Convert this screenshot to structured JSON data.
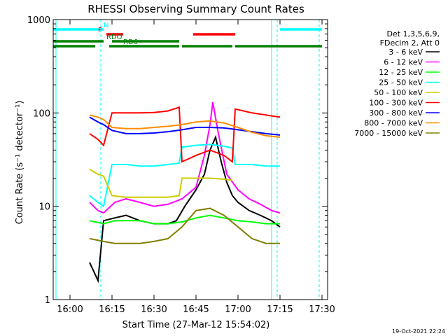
{
  "chart_data": {
    "type": "line",
    "title": "RHESSI Observing Summary Count Rates",
    "xlabel": "Start Time (27-Mar-12 15:54:02)",
    "ylabel": "Count Rate (s⁻¹ detector⁻¹)",
    "y_scale": "log",
    "ylim": [
      1,
      1000
    ],
    "xlim": [
      "15:54",
      "17:32"
    ],
    "x_ticks": [
      "16:00",
      "16:15",
      "16:30",
      "16:45",
      "17:00",
      "17:15",
      "17:30"
    ],
    "y_ticks": [
      "1",
      "10",
      "100",
      "1000"
    ],
    "legend": {
      "placement": "right",
      "header": [
        "Det 1,3,5,6,9,",
        "FDecim 2, Att 0"
      ]
    },
    "timestamp": "19-Oct-2021 22:24",
    "flags": [
      {
        "label": "N",
        "color": "#00ffff",
        "segments": [
          [
            "15:54",
            "16:12"
          ],
          [
            "17:15",
            "17:30"
          ]
        ]
      },
      {
        "label": "F",
        "color": "#ff0000",
        "segments": [
          [
            "16:13",
            "16:19"
          ],
          [
            "16:44",
            "16:59"
          ]
        ]
      },
      {
        "label": "RDO",
        "color": "#008000",
        "segments": [
          [
            "15:54",
            "16:12"
          ],
          [
            "16:15",
            "16:39"
          ]
        ]
      },
      {
        "label": "RD6",
        "color": "#008000",
        "segments": [
          [
            "15:54",
            "16:09"
          ],
          [
            "16:14",
            "16:39"
          ],
          [
            "16:40",
            "16:58"
          ],
          [
            "16:59",
            "17:30"
          ]
        ]
      }
    ],
    "vlines": [
      {
        "time": "16:11",
        "style": "dashed",
        "color": "#00ffff"
      },
      {
        "time": "17:14",
        "style": "dashed",
        "color": "#00ffff"
      },
      {
        "time": "17:29",
        "style": "dashed",
        "color": "#00ffff"
      },
      {
        "time": "15:55",
        "style": "solid",
        "color": "#00ffff"
      },
      {
        "time": "17:12",
        "style": "solid",
        "color": "#00ffff"
      }
    ],
    "series": [
      {
        "name": "3 - 6 keV",
        "color": "#000000",
        "points": [
          [
            "16:07",
            2.5
          ],
          [
            "16:10",
            1.6
          ],
          [
            "16:12",
            7
          ],
          [
            "16:16",
            7.5
          ],
          [
            "16:20",
            8
          ],
          [
            "16:25",
            7
          ],
          [
            "16:30",
            6.5
          ],
          [
            "16:35",
            6.5
          ],
          [
            "16:38",
            7
          ],
          [
            "16:41",
            10
          ],
          [
            "16:45",
            15
          ],
          [
            "16:48",
            22
          ],
          [
            "16:50",
            40
          ],
          [
            "16:52",
            55
          ],
          [
            "16:54",
            30
          ],
          [
            "16:56",
            18
          ],
          [
            "16:58",
            13
          ],
          [
            "17:00",
            11
          ],
          [
            "17:04",
            9
          ],
          [
            "17:08",
            8
          ],
          [
            "17:12",
            7
          ],
          [
            "17:15",
            6
          ]
        ]
      },
      {
        "name": "6 - 12 keV",
        "color": "#ff00ff",
        "points": [
          [
            "16:07",
            11
          ],
          [
            "16:10",
            9
          ],
          [
            "16:12",
            8.5
          ],
          [
            "16:16",
            11
          ],
          [
            "16:20",
            12
          ],
          [
            "16:25",
            11
          ],
          [
            "16:30",
            10
          ],
          [
            "16:35",
            10.5
          ],
          [
            "16:40",
            12
          ],
          [
            "16:45",
            16
          ],
          [
            "16:48",
            35
          ],
          [
            "16:50",
            75
          ],
          [
            "16:51",
            130
          ],
          [
            "16:53",
            60
          ],
          [
            "16:56",
            22
          ],
          [
            "17:00",
            15
          ],
          [
            "17:04",
            12
          ],
          [
            "17:08",
            10.5
          ],
          [
            "17:12",
            9
          ],
          [
            "17:15",
            8.5
          ]
        ]
      },
      {
        "name": "12 - 25 keV",
        "color": "#00ff00",
        "points": [
          [
            "16:07",
            7
          ],
          [
            "16:12",
            6.5
          ],
          [
            "16:16",
            7
          ],
          [
            "16:20",
            7
          ],
          [
            "16:25",
            7
          ],
          [
            "16:30",
            6.5
          ],
          [
            "16:35",
            6.5
          ],
          [
            "16:40",
            6.8
          ],
          [
            "16:45",
            7.5
          ],
          [
            "16:50",
            8
          ],
          [
            "16:55",
            7.5
          ],
          [
            "17:00",
            7
          ],
          [
            "17:05",
            6.8
          ],
          [
            "17:10",
            6.5
          ],
          [
            "17:15",
            6.5
          ]
        ]
      },
      {
        "name": "25 - 50 keV",
        "color": "#00ffff",
        "points": [
          [
            "16:07",
            13
          ],
          [
            "16:10",
            11
          ],
          [
            "16:12",
            10
          ],
          [
            "16:15",
            28
          ],
          [
            "16:20",
            28
          ],
          [
            "16:25",
            27
          ],
          [
            "16:30",
            27
          ],
          [
            "16:35",
            28
          ],
          [
            "16:39",
            29
          ],
          [
            "16:40",
            43
          ],
          [
            "16:45",
            45
          ],
          [
            "16:50",
            46
          ],
          [
            "16:55",
            44
          ],
          [
            "16:58",
            42
          ],
          [
            "16:59",
            28
          ],
          [
            "17:05",
            28
          ],
          [
            "17:10",
            27
          ],
          [
            "17:15",
            27
          ]
        ]
      },
      {
        "name": "50 - 100 keV",
        "color": "#cccc00",
        "points": [
          [
            "16:07",
            25
          ],
          [
            "16:10",
            22
          ],
          [
            "16:12",
            21
          ],
          [
            "16:15",
            13
          ],
          [
            "16:20",
            12.5
          ],
          [
            "16:25",
            12.5
          ],
          [
            "16:30",
            12.5
          ],
          [
            "16:35",
            12.5
          ],
          [
            "16:39",
            13
          ],
          [
            "16:40",
            20
          ],
          [
            "16:45",
            20
          ],
          [
            "16:50",
            20
          ],
          [
            "16:55",
            19.5
          ],
          [
            "16:58",
            19
          ]
        ]
      },
      {
        "name": "100 - 300 keV",
        "color": "#ff0000",
        "points": [
          [
            "16:07",
            60
          ],
          [
            "16:10",
            52
          ],
          [
            "16:12",
            45
          ],
          [
            "16:15",
            100
          ],
          [
            "16:20",
            100
          ],
          [
            "16:25",
            100
          ],
          [
            "16:30",
            101
          ],
          [
            "16:35",
            105
          ],
          [
            "16:39",
            115
          ],
          [
            "16:40",
            30
          ],
          [
            "16:45",
            35
          ],
          [
            "16:50",
            40
          ],
          [
            "16:55",
            35
          ],
          [
            "16:58",
            30
          ],
          [
            "16:59",
            110
          ],
          [
            "17:05",
            100
          ],
          [
            "17:10",
            95
          ],
          [
            "17:15",
            90
          ]
        ]
      },
      {
        "name": "300 - 800 keV",
        "color": "#0000ff",
        "points": [
          [
            "16:07",
            90
          ],
          [
            "16:10",
            80
          ],
          [
            "16:12",
            75
          ],
          [
            "16:15",
            65
          ],
          [
            "16:20",
            60
          ],
          [
            "16:25",
            60
          ],
          [
            "16:30",
            61
          ],
          [
            "16:35",
            63
          ],
          [
            "16:40",
            66
          ],
          [
            "16:45",
            70
          ],
          [
            "16:50",
            70
          ],
          [
            "16:55",
            69
          ],
          [
            "17:00",
            66
          ],
          [
            "17:05",
            63
          ],
          [
            "17:10",
            60
          ],
          [
            "17:15",
            58
          ]
        ]
      },
      {
        "name": "800 - 7000 keV",
        "color": "#ff8c00",
        "points": [
          [
            "16:07",
            95
          ],
          [
            "16:10",
            90
          ],
          [
            "16:12",
            85
          ],
          [
            "16:15",
            70
          ],
          [
            "16:20",
            68
          ],
          [
            "16:25",
            68
          ],
          [
            "16:30",
            70
          ],
          [
            "16:35",
            72
          ],
          [
            "16:40",
            75
          ],
          [
            "16:45",
            80
          ],
          [
            "16:50",
            82
          ],
          [
            "16:55",
            78
          ],
          [
            "17:00",
            70
          ],
          [
            "17:05",
            62
          ],
          [
            "17:10",
            57
          ],
          [
            "17:15",
            55
          ]
        ]
      },
      {
        "name": "7000 - 15000 keV",
        "color": "#808000",
        "points": [
          [
            "16:07",
            4.5
          ],
          [
            "16:12",
            4.2
          ],
          [
            "16:16",
            4
          ],
          [
            "16:20",
            4
          ],
          [
            "16:25",
            4
          ],
          [
            "16:30",
            4.2
          ],
          [
            "16:35",
            4.5
          ],
          [
            "16:40",
            6
          ],
          [
            "16:45",
            9
          ],
          [
            "16:50",
            9.5
          ],
          [
            "16:55",
            8
          ],
          [
            "17:00",
            6
          ],
          [
            "17:05",
            4.5
          ],
          [
            "17:10",
            4
          ],
          [
            "17:15",
            4
          ]
        ]
      }
    ]
  }
}
